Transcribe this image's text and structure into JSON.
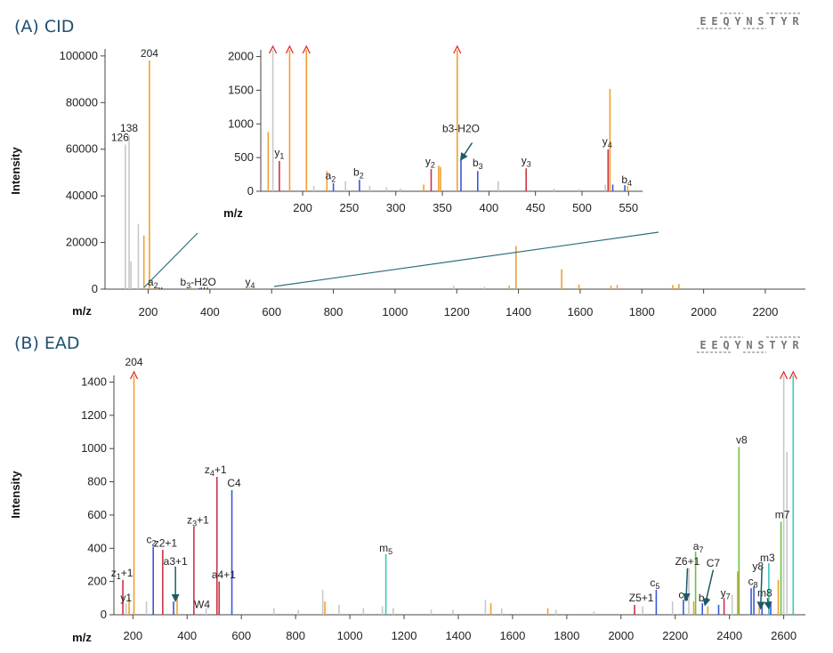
{
  "chart_data": [
    {
      "type": "bar",
      "panel_label": "(A) CID",
      "sequence": {
        "letters": [
          "E",
          "E",
          "Q",
          "Y",
          "N",
          "S",
          "T",
          "Y",
          "R"
        ],
        "highlight_index": 4,
        "highlight_color": "#d6007a"
      },
      "xlabel": "m/z",
      "ylabel": "Intensity",
      "xlim": [
        60,
        2330
      ],
      "ylim": [
        0,
        103000
      ],
      "xticks": [
        200,
        400,
        600,
        800,
        1000,
        1200,
        1400,
        1600,
        1800,
        2000,
        2200
      ],
      "yticks": [
        0,
        20000,
        40000,
        60000,
        80000,
        100000
      ],
      "colors": {
        "gray": "#c8c8c8",
        "orange": "#f0a030",
        "red": "#cc3344",
        "blue": "#3a58d8",
        "green": "#6cc040",
        "teal": "#3cc8bc",
        "arrow": "#e03030",
        "zoom_line": "#2f6e78"
      },
      "peaks": [
        {
          "mz": 126,
          "intensity": 62000,
          "color": "gray",
          "label": "126"
        },
        {
          "mz": 138,
          "intensity": 66000,
          "color": "gray",
          "label": "138"
        },
        {
          "mz": 144,
          "intensity": 12000,
          "color": "gray"
        },
        {
          "mz": 168,
          "intensity": 28000,
          "color": "gray"
        },
        {
          "mz": 186,
          "intensity": 23000,
          "color": "orange"
        },
        {
          "mz": 204,
          "intensity": 98000,
          "color": "orange",
          "label": "204"
        },
        {
          "mz": 229,
          "intensity": 800,
          "color": "orange"
        },
        {
          "mz": 340,
          "intensity": 700,
          "color": "orange"
        },
        {
          "mz": 365,
          "intensity": 500,
          "color": "blue"
        },
        {
          "mz": 528,
          "intensity": 900,
          "color": "orange"
        },
        {
          "mz": 1190,
          "intensity": 1500,
          "color": "gray"
        },
        {
          "mz": 1290,
          "intensity": 1000,
          "color": "gray"
        },
        {
          "mz": 1370,
          "intensity": 1500,
          "color": "orange"
        },
        {
          "mz": 1392,
          "intensity": 18500,
          "color": "orange"
        },
        {
          "mz": 1540,
          "intensity": 8500,
          "color": "orange"
        },
        {
          "mz": 1596,
          "intensity": 2000,
          "color": "orange"
        },
        {
          "mz": 1700,
          "intensity": 1500,
          "color": "orange"
        },
        {
          "mz": 1720,
          "intensity": 1800,
          "color": "orange"
        },
        {
          "mz": 1900,
          "intensity": 1800,
          "color": "orange"
        },
        {
          "mz": 1920,
          "intensity": 2200,
          "color": "orange"
        }
      ],
      "labels": [
        {
          "text": "a",
          "sub": "2",
          "mz": 215,
          "y": 1500
        },
        {
          "text": "b",
          "sub": "3",
          "suffix": "-H2O",
          "mz": 362,
          "y": 1500
        },
        {
          "text": "y",
          "sub": "4",
          "mz": 530,
          "y": 1500
        }
      ],
      "inset": {
        "xlim": [
          155,
          565
        ],
        "ylim": [
          0,
          2100
        ],
        "xticks": [
          200,
          250,
          300,
          350,
          400,
          450,
          500,
          550
        ],
        "yticks": [
          0,
          500,
          1000,
          1500,
          2000
        ],
        "xlabel": "m/z",
        "peaks": [
          {
            "mz": 163,
            "intensity": 880,
            "color": "orange"
          },
          {
            "mz": 168,
            "intensity": 2100,
            "color": "gray",
            "arrow": true
          },
          {
            "mz": 175,
            "intensity": 450,
            "color": "red"
          },
          {
            "mz": 186,
            "intensity": 2100,
            "color": "orange",
            "arrow": true
          },
          {
            "mz": 204,
            "intensity": 2100,
            "color": "orange",
            "arrow": true
          },
          {
            "mz": 212,
            "intensity": 80,
            "color": "gray"
          },
          {
            "mz": 226,
            "intensity": 300,
            "color": "orange"
          },
          {
            "mz": 233,
            "intensity": 120,
            "color": "blue"
          },
          {
            "mz": 246,
            "intensity": 150,
            "color": "gray"
          },
          {
            "mz": 261,
            "intensity": 170,
            "color": "blue"
          },
          {
            "mz": 272,
            "intensity": 80,
            "color": "gray"
          },
          {
            "mz": 290,
            "intensity": 60,
            "color": "gray"
          },
          {
            "mz": 305,
            "intensity": 40,
            "color": "gray"
          },
          {
            "mz": 330,
            "intensity": 100,
            "color": "orange"
          },
          {
            "mz": 338,
            "intensity": 330,
            "color": "red"
          },
          {
            "mz": 346,
            "intensity": 380,
            "color": "orange"
          },
          {
            "mz": 348,
            "intensity": 360,
            "color": "orange"
          },
          {
            "mz": 366,
            "intensity": 2100,
            "color": "orange",
            "arrow": true
          },
          {
            "mz": 370,
            "intensity": 470,
            "color": "blue"
          },
          {
            "mz": 388,
            "intensity": 300,
            "color": "blue"
          },
          {
            "mz": 410,
            "intensity": 150,
            "color": "gray"
          },
          {
            "mz": 440,
            "intensity": 340,
            "color": "red"
          },
          {
            "mz": 470,
            "intensity": 40,
            "color": "gray"
          },
          {
            "mz": 497,
            "intensity": 30,
            "color": "gray"
          },
          {
            "mz": 525,
            "intensity": 100,
            "color": "gray"
          },
          {
            "mz": 528,
            "intensity": 620,
            "color": "red"
          },
          {
            "mz": 530,
            "intensity": 1520,
            "color": "orange"
          },
          {
            "mz": 533,
            "intensity": 100,
            "color": "blue"
          },
          {
            "mz": 546,
            "intensity": 90,
            "color": "blue"
          },
          {
            "mz": 549,
            "intensity": 80,
            "color": "orange"
          }
        ],
        "labels": [
          {
            "text": "y",
            "sub": "1",
            "mz": 175,
            "y": 520
          },
          {
            "text": "a",
            "sub": "2",
            "mz": 230,
            "y": 180
          },
          {
            "text": "b",
            "sub": "2",
            "mz": 260,
            "y": 230
          },
          {
            "text": "y",
            "sub": "2",
            "mz": 337,
            "y": 390
          },
          {
            "text": "b3-H2O",
            "mz": 370,
            "y": 880
          },
          {
            "text": "b",
            "sub": "3",
            "mz": 388,
            "y": 370
          },
          {
            "text": "y",
            "sub": "3",
            "mz": 440,
            "y": 400
          },
          {
            "text": "y",
            "sub": "4",
            "mz": 527,
            "y": 690
          },
          {
            "text": "b",
            "sub": "4",
            "mz": 548,
            "y": 120
          }
        ],
        "pointer": {
          "from_mz": 382,
          "from_y": 720,
          "to_mz": 370,
          "to_y": 470
        }
      }
    },
    {
      "type": "bar",
      "panel_label": "(B) EAD",
      "sequence": {
        "letters": [
          "E",
          "E",
          "Q",
          "Y",
          "N",
          "S",
          "T",
          "Y",
          "R"
        ],
        "highlight_index": 4,
        "highlight_color": "#d6007a"
      },
      "xlabel": "m/z",
      "ylabel": "Intensity",
      "xlim": [
        130,
        2680
      ],
      "ylim": [
        0,
        1440
      ],
      "xticks": [
        200,
        400,
        600,
        800,
        1000,
        1200,
        1400,
        1600,
        1800,
        2000,
        2200,
        2400,
        2600
      ],
      "yticks": [
        0,
        200,
        400,
        600,
        800,
        1000,
        1200,
        1400
      ],
      "peaks": [
        {
          "mz": 163,
          "intensity": 210,
          "color": "red"
        },
        {
          "mz": 175,
          "intensity": 70,
          "color": "gray"
        },
        {
          "mz": 186,
          "intensity": 100,
          "color": "orange"
        },
        {
          "mz": 204,
          "intensity": 1440,
          "color": "orange",
          "arrow": true
        },
        {
          "mz": 250,
          "intensity": 80,
          "color": "gray"
        },
        {
          "mz": 275,
          "intensity": 410,
          "color": "blue"
        },
        {
          "mz": 310,
          "intensity": 390,
          "color": "red"
        },
        {
          "mz": 350,
          "intensity": 80,
          "color": "blue"
        },
        {
          "mz": 363,
          "intensity": 100,
          "color": "orange"
        },
        {
          "mz": 425,
          "intensity": 530,
          "color": "red"
        },
        {
          "mz": 470,
          "intensity": 40,
          "color": "gray"
        },
        {
          "mz": 510,
          "intensity": 830,
          "color": "red"
        },
        {
          "mz": 518,
          "intensity": 200,
          "color": "red"
        },
        {
          "mz": 565,
          "intensity": 750,
          "color": "blue"
        },
        {
          "mz": 720,
          "intensity": 40,
          "color": "gray"
        },
        {
          "mz": 810,
          "intensity": 30,
          "color": "gray"
        },
        {
          "mz": 900,
          "intensity": 150,
          "color": "gray"
        },
        {
          "mz": 908,
          "intensity": 80,
          "color": "orange"
        },
        {
          "mz": 960,
          "intensity": 60,
          "color": "gray"
        },
        {
          "mz": 1050,
          "intensity": 40,
          "color": "gray"
        },
        {
          "mz": 1120,
          "intensity": 50,
          "color": "gray"
        },
        {
          "mz": 1133,
          "intensity": 365,
          "color": "teal"
        },
        {
          "mz": 1160,
          "intensity": 40,
          "color": "gray"
        },
        {
          "mz": 1300,
          "intensity": 30,
          "color": "gray"
        },
        {
          "mz": 1380,
          "intensity": 30,
          "color": "gray"
        },
        {
          "mz": 1500,
          "intensity": 90,
          "color": "gray"
        },
        {
          "mz": 1520,
          "intensity": 70,
          "color": "orange"
        },
        {
          "mz": 1560,
          "intensity": 40,
          "color": "gray"
        },
        {
          "mz": 1730,
          "intensity": 40,
          "color": "orange"
        },
        {
          "mz": 1760,
          "intensity": 30,
          "color": "gray"
        },
        {
          "mz": 1900,
          "intensity": 20,
          "color": "gray"
        },
        {
          "mz": 2050,
          "intensity": 60,
          "color": "red"
        },
        {
          "mz": 2080,
          "intensity": 50,
          "color": "gray"
        },
        {
          "mz": 2130,
          "intensity": 150,
          "color": "blue"
        },
        {
          "mz": 2190,
          "intensity": 80,
          "color": "gray"
        },
        {
          "mz": 2230,
          "intensity": 90,
          "color": "blue"
        },
        {
          "mz": 2250,
          "intensity": 280,
          "color": "gray"
        },
        {
          "mz": 2268,
          "intensity": 80,
          "color": "orange"
        },
        {
          "mz": 2275,
          "intensity": 380,
          "color": "green"
        },
        {
          "mz": 2300,
          "intensity": 70,
          "color": "blue"
        },
        {
          "mz": 2320,
          "intensity": 50,
          "color": "orange"
        },
        {
          "mz": 2360,
          "intensity": 60,
          "color": "blue"
        },
        {
          "mz": 2380,
          "intensity": 100,
          "color": "red"
        },
        {
          "mz": 2410,
          "intensity": 120,
          "color": "gray"
        },
        {
          "mz": 2430,
          "intensity": 260,
          "color": "orange"
        },
        {
          "mz": 2435,
          "intensity": 1010,
          "color": "green"
        },
        {
          "mz": 2480,
          "intensity": 160,
          "color": "blue"
        },
        {
          "mz": 2490,
          "intensity": 170,
          "color": "blue"
        },
        {
          "mz": 2510,
          "intensity": 70,
          "color": "orange"
        },
        {
          "mz": 2520,
          "intensity": 50,
          "color": "blue"
        },
        {
          "mz": 2545,
          "intensity": 310,
          "color": "teal"
        },
        {
          "mz": 2552,
          "intensity": 80,
          "color": "blue"
        },
        {
          "mz": 2580,
          "intensity": 210,
          "color": "orange"
        },
        {
          "mz": 2590,
          "intensity": 560,
          "color": "green"
        },
        {
          "mz": 2600,
          "intensity": 1440,
          "color": "gray",
          "arrow": true
        },
        {
          "mz": 2612,
          "intensity": 980,
          "color": "gray"
        },
        {
          "mz": 2635,
          "intensity": 1440,
          "color": "teal",
          "arrow": true
        }
      ],
      "labels": [
        {
          "text": "204",
          "mz": 204,
          "y": 1500,
          "small": true
        },
        {
          "text": "z",
          "sub": "1",
          "suffix": "+1",
          "mz": 160,
          "y": 230
        },
        {
          "text": "y1",
          "mz": 175,
          "y": 80,
          "small": true
        },
        {
          "text": "c",
          "sub": "2",
          "mz": 268,
          "y": 430
        },
        {
          "text": "z2+1",
          "mz": 320,
          "y": 410,
          "small": true
        },
        {
          "text": "a3+1",
          "mz": 357,
          "y": 300,
          "small": true
        },
        {
          "text": "z",
          "sub": "3",
          "suffix": "+1",
          "mz": 440,
          "y": 550
        },
        {
          "text": "z",
          "sub": "4",
          "suffix": "+1",
          "mz": 505,
          "y": 850
        },
        {
          "text": "C4",
          "mz": 573,
          "y": 770,
          "small": true
        },
        {
          "text": "a4+1",
          "mz": 535,
          "y": 220,
          "small": true
        },
        {
          "text": "W4",
          "mz": 455,
          "y": 40,
          "small": true
        },
        {
          "text": "m",
          "sub": "5",
          "mz": 1133,
          "y": 380
        },
        {
          "text": "c",
          "sub": "5",
          "mz": 2125,
          "y": 170
        },
        {
          "text": "Z5+1",
          "mz": 2075,
          "y": 80,
          "small": true
        },
        {
          "text": "c",
          "sub": "6",
          "mz": 2230,
          "y": 100
        },
        {
          "text": "Z6+1",
          "mz": 2245,
          "y": 300,
          "small": true
        },
        {
          "text": "a",
          "sub": "7",
          "mz": 2285,
          "y": 390
        },
        {
          "text": "C7",
          "mz": 2340,
          "y": 290,
          "small": true
        },
        {
          "text": "b",
          "sub": "7",
          "mz": 2305,
          "y": 80
        },
        {
          "text": "y",
          "sub": "7",
          "mz": 2385,
          "y": 110
        },
        {
          "text": "v8",
          "mz": 2445,
          "y": 1030,
          "small": true
        },
        {
          "text": "y8",
          "mz": 2505,
          "y": 270,
          "small": true
        },
        {
          "text": "c",
          "sub": "8",
          "mz": 2487,
          "y": 180
        },
        {
          "text": "m3",
          "mz": 2540,
          "y": 320,
          "small": true
        },
        {
          "text": "m8",
          "mz": 2530,
          "y": 110,
          "small": true
        },
        {
          "text": "m7",
          "mz": 2595,
          "y": 580,
          "small": true
        }
      ],
      "pointers": [
        {
          "from_mz": 357,
          "from_y": 290,
          "to_mz": 357,
          "to_y": 85
        },
        {
          "from_mz": 2245,
          "from_y": 280,
          "to_mz": 2240,
          "to_y": 90
        },
        {
          "from_mz": 2340,
          "from_y": 270,
          "to_mz": 2310,
          "to_y": 60
        },
        {
          "from_mz": 2520,
          "from_y": 290,
          "to_mz": 2515,
          "to_y": 40
        },
        {
          "from_mz": 2540,
          "from_y": 100,
          "to_mz": 2545,
          "to_y": 40
        }
      ]
    }
  ]
}
